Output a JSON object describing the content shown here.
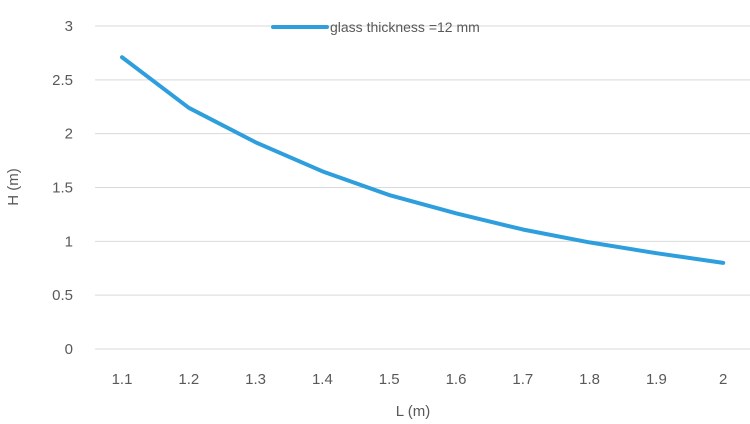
{
  "chart_data": {
    "type": "line",
    "title": "",
    "xlabel": "L (m)",
    "ylabel": "H (m)",
    "x": [
      1.1,
      1.2,
      1.3,
      1.4,
      1.5,
      1.6,
      1.7,
      1.8,
      1.9,
      2
    ],
    "x_tick_labels": [
      "1.1",
      "1.2",
      "1.3",
      "1.4",
      "1.5",
      "1.6",
      "1.7",
      "1.8",
      "1.9",
      "2"
    ],
    "ylim": [
      0,
      3
    ],
    "y_ticks": [
      0,
      0.5,
      1,
      1.5,
      2,
      2.5,
      3
    ],
    "y_tick_labels": [
      "0",
      "0.5",
      "1",
      "1.5",
      "2",
      "2.5",
      "3"
    ],
    "grid": true,
    "legend_position": "top-center",
    "series": [
      {
        "name": "glass thickness =12 mm",
        "color": "#2e9fdc",
        "values": [
          2.71,
          2.24,
          1.92,
          1.65,
          1.43,
          1.26,
          1.11,
          0.99,
          0.89,
          0.8
        ]
      }
    ]
  }
}
